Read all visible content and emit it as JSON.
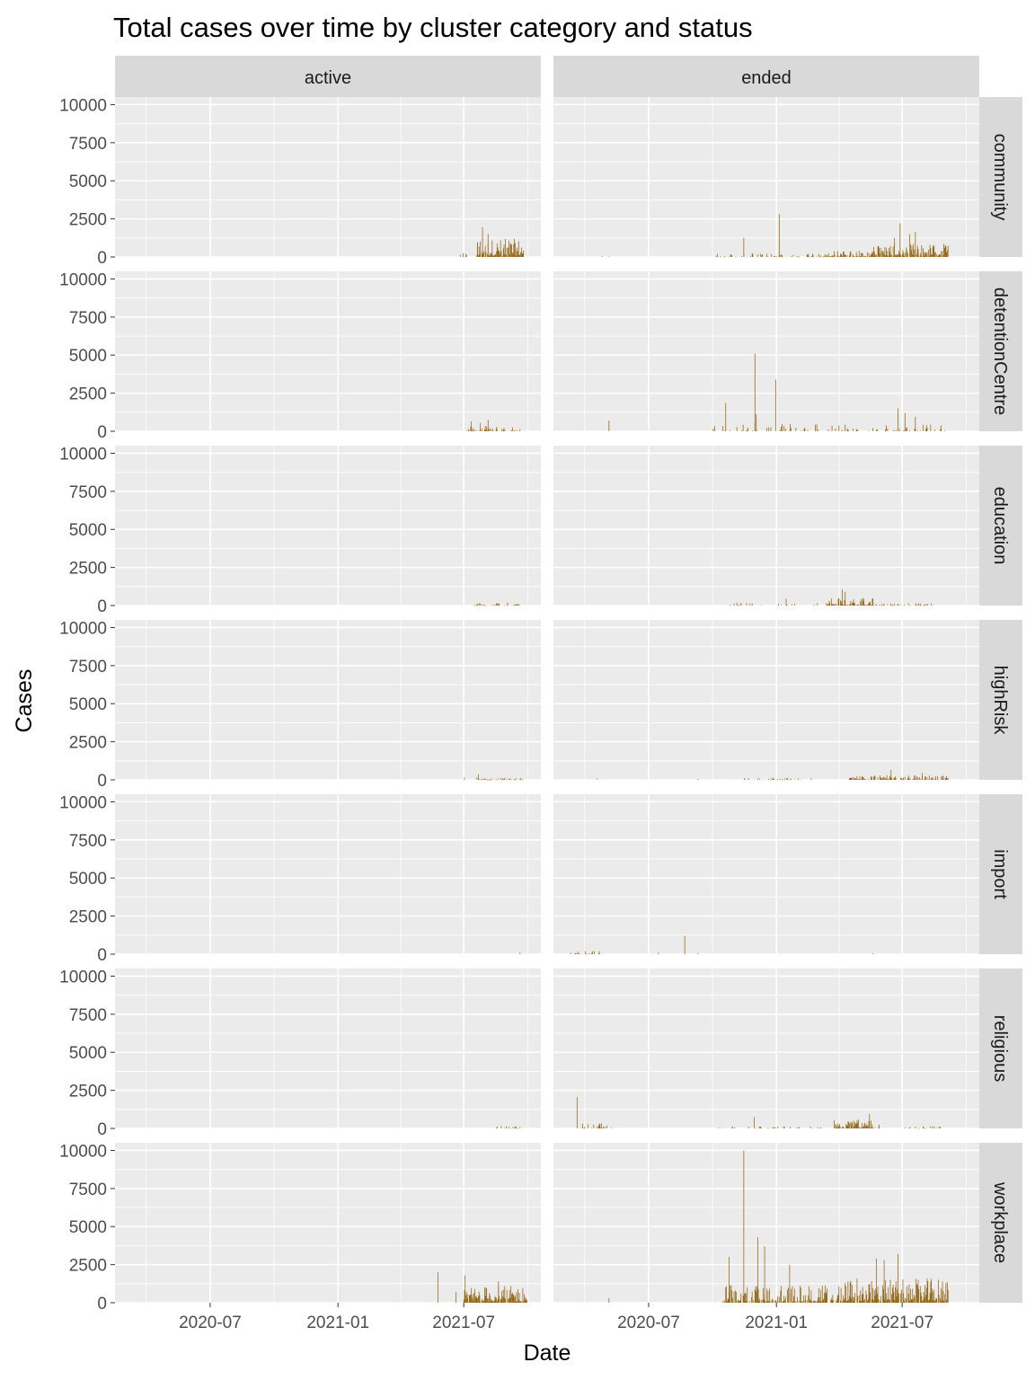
{
  "chart_data": {
    "type": "bar",
    "title": "Total cases over time by cluster category and status",
    "xlabel": "Date",
    "ylabel": "Cases",
    "facet_cols": [
      "active",
      "ended"
    ],
    "facet_rows": [
      "community",
      "detentionCentre",
      "education",
      "highRisk",
      "import",
      "religious",
      "workplace"
    ],
    "x_range": [
      "2020-02-15",
      "2021-10-20"
    ],
    "x_ticks": [
      "2020-07",
      "2021-01",
      "2021-07"
    ],
    "y_range": [
      0,
      10500
    ],
    "y_ticks": [
      0,
      2500,
      5000,
      7500,
      10000
    ],
    "bar_color": "#8B5A00",
    "panel_background": "#EBEBEB",
    "strip_background": "#D9D9D9",
    "grid": true,
    "series": [
      {
        "row": "community",
        "col": "active",
        "bursts": [
          {
            "start": "2021-06-25",
            "end": "2021-07-05",
            "max": 300,
            "density": 0.35
          },
          {
            "start": "2021-07-20",
            "end": "2021-09-25",
            "max": 1200,
            "density": 0.85
          }
        ],
        "peaks": [
          {
            "date": "2021-07-28",
            "value": 1950
          },
          {
            "date": "2021-08-05",
            "value": 1500
          },
          {
            "date": "2021-07-21",
            "value": 950
          }
        ]
      },
      {
        "row": "community",
        "col": "ended",
        "bursts": [
          {
            "start": "2020-10-01",
            "end": "2020-12-31",
            "max": 250,
            "density": 0.35
          },
          {
            "start": "2021-01-01",
            "end": "2021-03-15",
            "max": 250,
            "density": 0.5
          },
          {
            "start": "2021-03-15",
            "end": "2021-05-15",
            "max": 450,
            "density": 0.8
          },
          {
            "start": "2021-05-15",
            "end": "2021-09-05",
            "max": 900,
            "density": 0.9
          }
        ],
        "peaks": [
          {
            "date": "2020-04-25",
            "value": 60
          },
          {
            "date": "2020-05-05",
            "value": 40
          },
          {
            "date": "2020-11-15",
            "value": 1250
          },
          {
            "date": "2021-01-05",
            "value": 2800
          },
          {
            "date": "2021-06-28",
            "value": 2200
          },
          {
            "date": "2021-07-12",
            "value": 1500
          },
          {
            "date": "2021-07-20",
            "value": 1650
          },
          {
            "date": "2021-06-20",
            "value": 1250
          }
        ]
      },
      {
        "row": "detentionCentre",
        "col": "active",
        "bursts": [
          {
            "start": "2021-07-05",
            "end": "2021-09-20",
            "max": 400,
            "density": 0.4
          }
        ],
        "peaks": [
          {
            "date": "2021-07-12",
            "value": 650
          },
          {
            "date": "2021-08-05",
            "value": 750
          },
          {
            "date": "2021-07-25",
            "value": 550
          }
        ]
      },
      {
        "row": "detentionCentre",
        "col": "ended",
        "bursts": [
          {
            "start": "2020-10-01",
            "end": "2020-12-31",
            "max": 700,
            "density": 0.2
          },
          {
            "start": "2021-01-01",
            "end": "2021-09-05",
            "max": 500,
            "density": 0.25
          }
        ],
        "peaks": [
          {
            "date": "2020-05-05",
            "value": 700
          },
          {
            "date": "2020-10-20",
            "value": 1850
          },
          {
            "date": "2020-12-01",
            "value": 5100
          },
          {
            "date": "2020-12-31",
            "value": 3400
          },
          {
            "date": "2020-12-03",
            "value": 1100
          },
          {
            "date": "2021-06-25",
            "value": 1500
          },
          {
            "date": "2021-07-05",
            "value": 1200
          },
          {
            "date": "2021-07-20",
            "value": 950
          }
        ]
      },
      {
        "row": "education",
        "col": "active",
        "bursts": [
          {
            "start": "2021-07-15",
            "end": "2021-09-20",
            "max": 200,
            "density": 0.4
          }
        ],
        "peaks": []
      },
      {
        "row": "education",
        "col": "ended",
        "bursts": [
          {
            "start": "2020-10-25",
            "end": "2021-03-15",
            "max": 250,
            "density": 0.18
          },
          {
            "start": "2021-03-15",
            "end": "2021-05-20",
            "max": 500,
            "density": 0.85
          },
          {
            "start": "2021-05-20",
            "end": "2021-08-20",
            "max": 150,
            "density": 0.35
          }
        ],
        "peaks": [
          {
            "date": "2021-01-15",
            "value": 450
          },
          {
            "date": "2021-04-06",
            "value": 1050
          },
          {
            "date": "2021-04-10",
            "value": 900
          }
        ]
      },
      {
        "row": "highRisk",
        "col": "active",
        "bursts": [
          {
            "start": "2021-07-20",
            "end": "2021-09-25",
            "max": 150,
            "density": 0.6
          }
        ],
        "peaks": [
          {
            "date": "2021-07-02",
            "value": 150
          },
          {
            "date": "2021-07-22",
            "value": 350
          }
        ]
      },
      {
        "row": "highRisk",
        "col": "ended",
        "bursts": [
          {
            "start": "2020-11-15",
            "end": "2021-02-20",
            "max": 150,
            "density": 0.3
          },
          {
            "start": "2021-04-15",
            "end": "2021-09-05",
            "max": 300,
            "density": 0.7
          }
        ],
        "peaks": [
          {
            "date": "2020-04-18",
            "value": 80
          },
          {
            "date": "2020-09-10",
            "value": 60
          },
          {
            "date": "2021-06-15",
            "value": 650
          },
          {
            "date": "2021-07-30",
            "value": 450
          }
        ]
      },
      {
        "row": "import",
        "col": "active",
        "bursts": [],
        "peaks": [
          {
            "date": "2021-09-20",
            "value": 100
          }
        ]
      },
      {
        "row": "import",
        "col": "ended",
        "bursts": [
          {
            "start": "2020-03-10",
            "end": "2020-04-25",
            "max": 200,
            "density": 0.3
          }
        ],
        "peaks": [
          {
            "date": "2020-08-22",
            "value": 1200
          },
          {
            "date": "2020-07-15",
            "value": 100
          },
          {
            "date": "2020-09-10",
            "value": 80
          },
          {
            "date": "2021-05-20",
            "value": 60
          }
        ]
      },
      {
        "row": "religious",
        "col": "active",
        "bursts": [
          {
            "start": "2021-08-15",
            "end": "2021-09-20",
            "max": 150,
            "density": 0.4
          }
        ],
        "peaks": []
      },
      {
        "row": "religious",
        "col": "ended",
        "bursts": [
          {
            "start": "2020-03-25",
            "end": "2020-05-10",
            "max": 350,
            "density": 0.4
          },
          {
            "start": "2020-10-10",
            "end": "2021-03-10",
            "max": 150,
            "density": 0.25
          },
          {
            "start": "2021-03-25",
            "end": "2021-05-30",
            "max": 600,
            "density": 0.8
          },
          {
            "start": "2021-07-05",
            "end": "2021-08-25",
            "max": 150,
            "density": 0.4
          }
        ],
        "peaks": [
          {
            "date": "2020-03-20",
            "value": 2050
          },
          {
            "date": "2020-11-30",
            "value": 750
          },
          {
            "date": "2021-05-15",
            "value": 950
          }
        ]
      },
      {
        "row": "workplace",
        "col": "active",
        "bursts": [
          {
            "start": "2021-07-01",
            "end": "2021-09-30",
            "max": 1100,
            "density": 0.9
          }
        ],
        "peaks": [
          {
            "date": "2021-05-25",
            "value": 2000
          },
          {
            "date": "2021-06-20",
            "value": 700
          },
          {
            "date": "2021-07-03",
            "value": 1800
          },
          {
            "date": "2021-08-20",
            "value": 1400
          }
        ]
      },
      {
        "row": "workplace",
        "col": "ended",
        "bursts": [
          {
            "start": "2020-10-15",
            "end": "2021-04-10",
            "max": 1200,
            "density": 0.7
          },
          {
            "start": "2021-04-10",
            "end": "2021-09-05",
            "max": 1600,
            "density": 0.9
          }
        ],
        "peaks": [
          {
            "date": "2020-05-05",
            "value": 300
          },
          {
            "date": "2020-10-25",
            "value": 3000
          },
          {
            "date": "2020-11-15",
            "value": 10000
          },
          {
            "date": "2020-12-05",
            "value": 4300
          },
          {
            "date": "2020-12-15",
            "value": 3700
          },
          {
            "date": "2021-05-25",
            "value": 2900
          },
          {
            "date": "2021-06-05",
            "value": 2800
          },
          {
            "date": "2021-06-25",
            "value": 3200
          },
          {
            "date": "2021-01-20",
            "value": 2500
          }
        ]
      }
    ]
  }
}
